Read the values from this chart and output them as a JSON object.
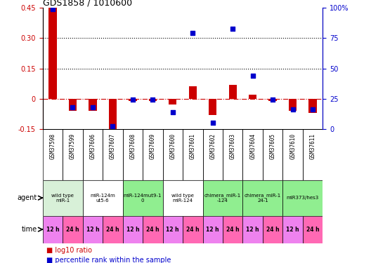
{
  "title": "GDS1858 / 1010600",
  "samples": [
    "GSM37598",
    "GSM37599",
    "GSM37606",
    "GSM37607",
    "GSM37608",
    "GSM37609",
    "GSM37600",
    "GSM37601",
    "GSM37602",
    "GSM37603",
    "GSM37604",
    "GSM37605",
    "GSM37610",
    "GSM37611"
  ],
  "log10_ratio": [
    0.45,
    -0.06,
    -0.06,
    -0.19,
    -0.01,
    -0.01,
    -0.03,
    0.06,
    -0.08,
    0.07,
    0.02,
    -0.01,
    -0.06,
    -0.07
  ],
  "percentile_rank": [
    99,
    18,
    18,
    2,
    24,
    24,
    14,
    79,
    5,
    83,
    44,
    24,
    16,
    16
  ],
  "ylim_left": [
    -0.15,
    0.45
  ],
  "ylim_right": [
    0,
    100
  ],
  "yticks_left": [
    -0.15,
    0.0,
    0.15,
    0.3,
    0.45
  ],
  "yticks_right": [
    0,
    25,
    50,
    75,
    100
  ],
  "ytick_labels_left": [
    "-0.15",
    "0",
    "0.15",
    "0.30",
    "0.45"
  ],
  "ytick_labels_right": [
    "0",
    "25",
    "50",
    "75",
    "100%"
  ],
  "hlines": [
    0.15,
    0.3
  ],
  "agents": [
    {
      "label": "wild type\nmiR-1",
      "cols": [
        0,
        1
      ],
      "color": "#d8f0d8"
    },
    {
      "label": "miR-124m\nut5-6",
      "cols": [
        2,
        3
      ],
      "color": "#ffffff"
    },
    {
      "label": "miR-124mut9-1\n0",
      "cols": [
        4,
        5
      ],
      "color": "#90ee90"
    },
    {
      "label": "wild type\nmiR-124",
      "cols": [
        6,
        7
      ],
      "color": "#ffffff"
    },
    {
      "label": "chimera_miR-1\n-124",
      "cols": [
        8,
        9
      ],
      "color": "#90ee90"
    },
    {
      "label": "chimera_miR-1\n24-1",
      "cols": [
        10,
        11
      ],
      "color": "#90ee90"
    },
    {
      "label": "miR373/hes3",
      "cols": [
        12,
        13
      ],
      "color": "#90ee90"
    }
  ],
  "times": [
    "12 h",
    "24 h",
    "12 h",
    "24 h",
    "12 h",
    "24 h",
    "12 h",
    "24 h",
    "12 h",
    "24 h",
    "12 h",
    "24 h",
    "12 h",
    "24 h"
  ],
  "bar_color": "#cc0000",
  "dot_color": "#0000cc",
  "bg_color": "#ffffff",
  "label_color_left": "#cc0000",
  "label_color_right": "#0000cc",
  "sample_bg": "#d0d0d0",
  "violet": "#ee82ee",
  "pink": "#ff69b4"
}
